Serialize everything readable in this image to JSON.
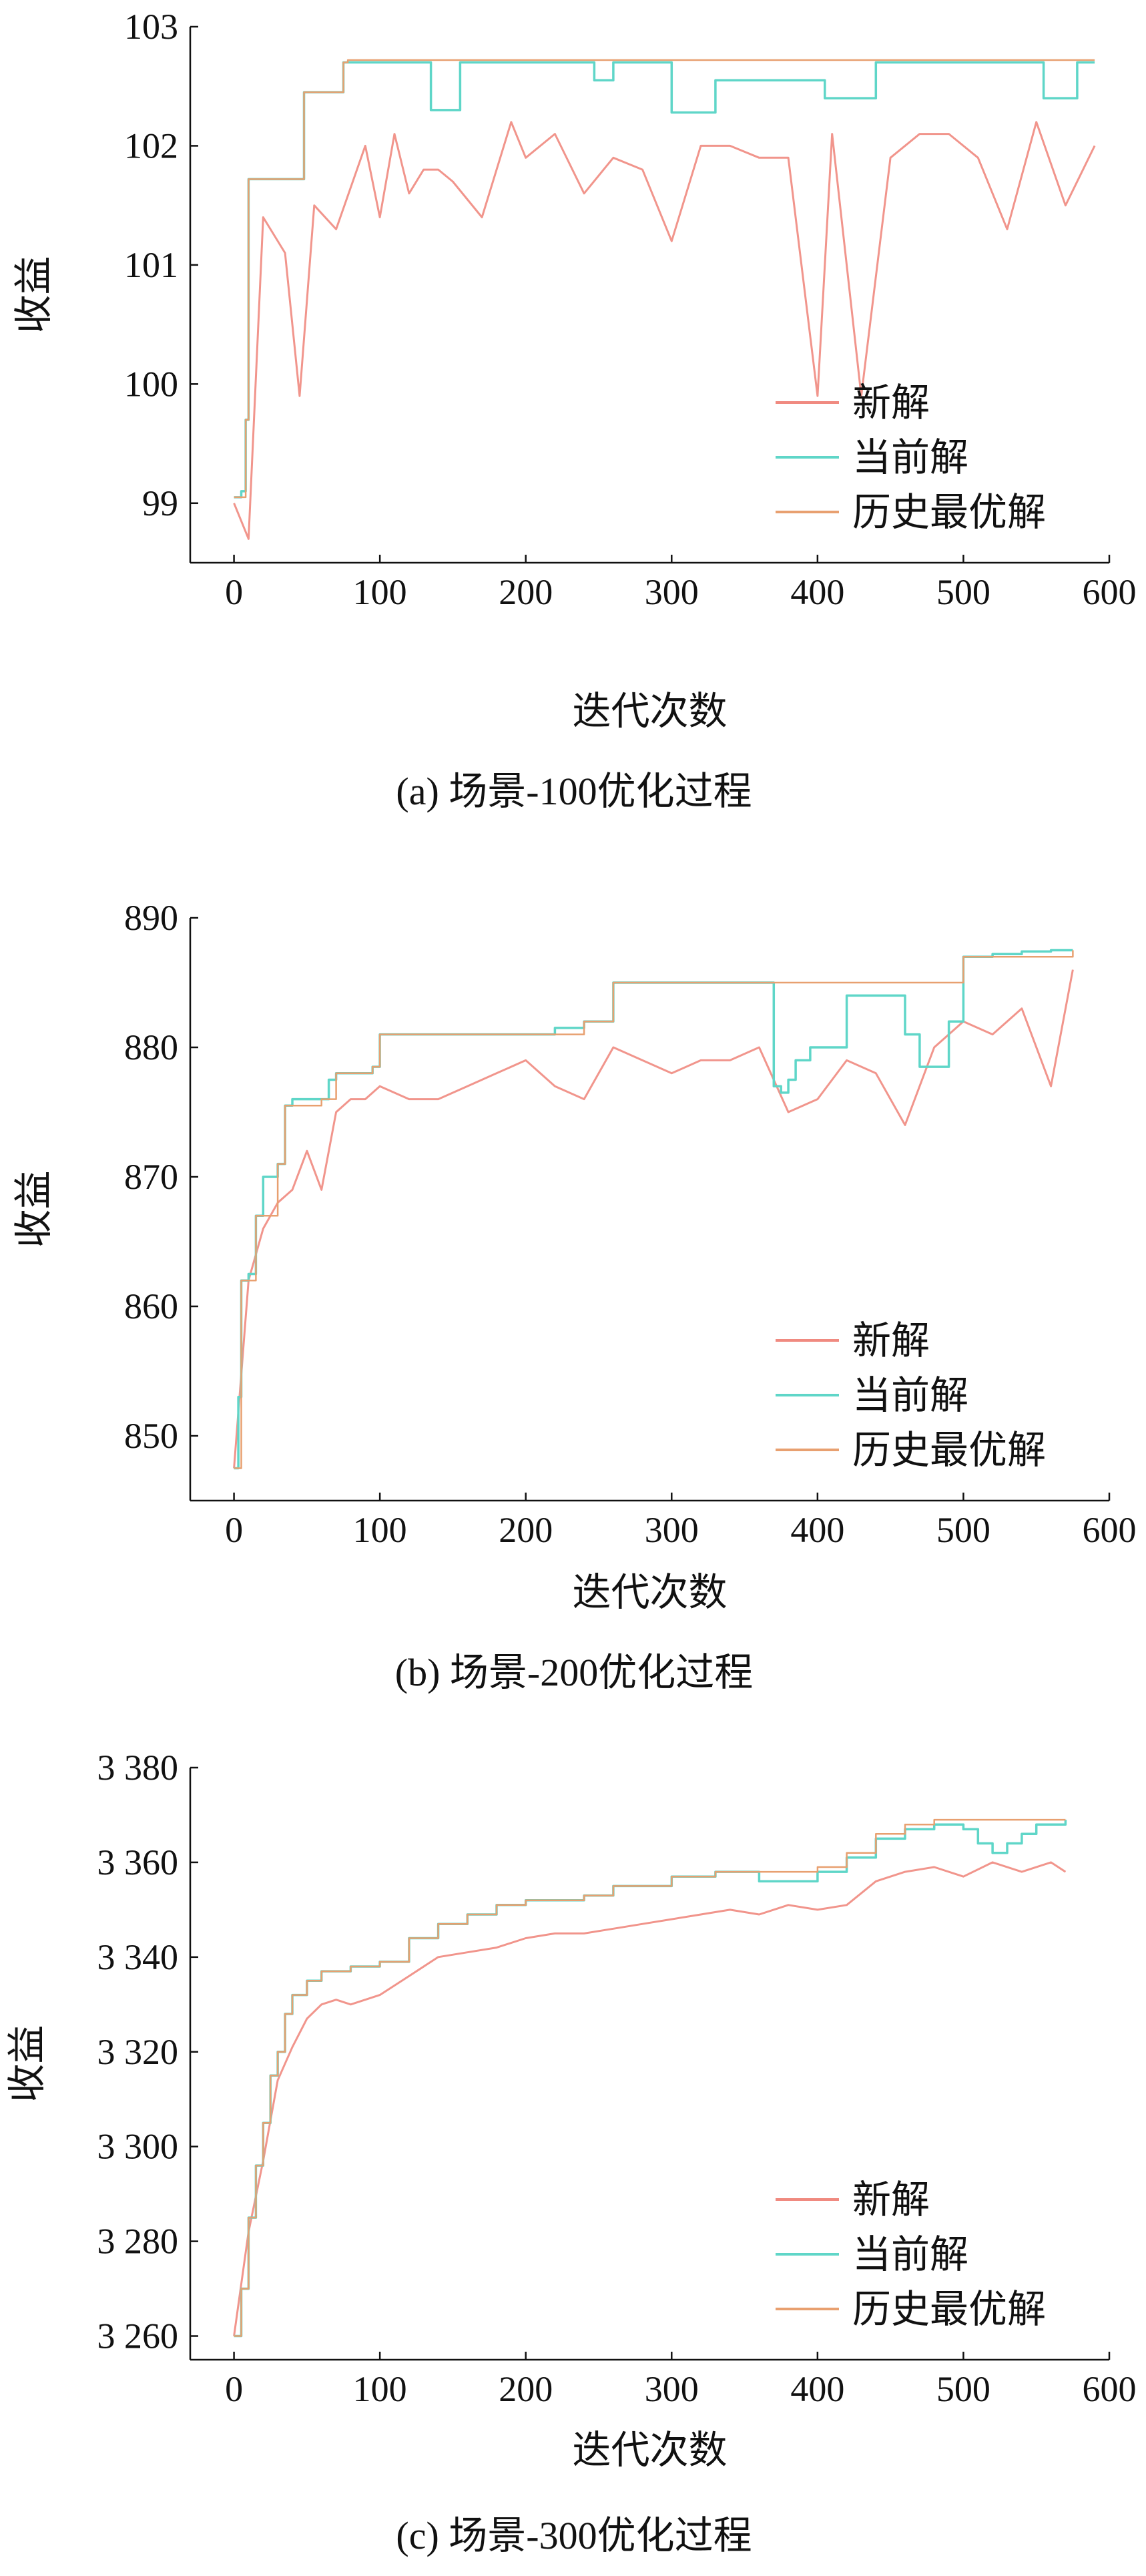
{
  "chart_data": [
    {
      "type": "line",
      "caption": "(a) 场景-100优化过程",
      "xlabel": "迭代次数",
      "ylabel": "收益",
      "xlim": [
        -30,
        600
      ],
      "ylim": [
        98.5,
        103.0
      ],
      "xticks": [
        0,
        100,
        200,
        300,
        400,
        500,
        600
      ],
      "yticks": [
        99,
        100,
        101,
        102,
        103
      ],
      "ytick_labels": [
        "99",
        "100",
        "101",
        "102",
        "103"
      ],
      "legend": [
        "新解",
        "当前解",
        "历史最优解"
      ],
      "legend_position": "bottom-right",
      "grid": false,
      "series": [
        {
          "name": "当前解",
          "x": [
            0,
            5,
            8,
            10,
            12,
            45,
            48,
            75,
            78,
            130,
            135,
            150,
            155,
            242,
            247,
            255,
            260,
            298,
            300,
            325,
            330,
            340,
            345,
            400,
            405,
            435,
            440,
            550,
            555,
            575,
            578,
            590
          ],
          "values": [
            99.05,
            99.1,
            99.7,
            101.72,
            101.72,
            101.72,
            102.45,
            102.7,
            102.7,
            102.7,
            102.3,
            102.3,
            102.7,
            102.7,
            102.55,
            102.55,
            102.7,
            102.7,
            102.28,
            102.28,
            102.55,
            102.55,
            102.55,
            102.55,
            102.4,
            102.4,
            102.7,
            102.7,
            102.4,
            102.4,
            102.7,
            102.7
          ]
        },
        {
          "name": "历史最优解",
          "x": [
            0,
            8,
            10,
            45,
            48,
            75,
            78,
            590
          ],
          "values": [
            99.05,
            99.7,
            101.72,
            101.72,
            102.45,
            102.7,
            102.72,
            102.72
          ]
        },
        {
          "name": "新解",
          "x": [
            0,
            10,
            20,
            35,
            45,
            55,
            70,
            90,
            100,
            110,
            120,
            130,
            140,
            150,
            170,
            190,
            200,
            220,
            240,
            260,
            280,
            300,
            320,
            340,
            360,
            380,
            400,
            410,
            430,
            450,
            470,
            490,
            510,
            530,
            550,
            570,
            590
          ],
          "values": [
            99.0,
            98.7,
            101.4,
            101.1,
            99.9,
            101.5,
            101.3,
            102.0,
            101.4,
            102.1,
            101.6,
            101.8,
            101.8,
            101.7,
            101.4,
            102.2,
            101.9,
            102.1,
            101.6,
            101.9,
            101.8,
            101.2,
            102.0,
            102.0,
            101.9,
            101.9,
            99.9,
            102.1,
            99.9,
            101.9,
            102.1,
            102.1,
            101.9,
            101.3,
            102.2,
            101.5,
            102.0
          ]
        }
      ]
    },
    {
      "type": "line",
      "caption": "(b) 场景-200优化过程",
      "xlabel": "迭代次数",
      "ylabel": "收益",
      "xlim": [
        -30,
        600
      ],
      "ylim": [
        845,
        890
      ],
      "xticks": [
        0,
        100,
        200,
        300,
        400,
        500,
        600
      ],
      "yticks": [
        850,
        860,
        870,
        880,
        890
      ],
      "ytick_labels": [
        "850",
        "860",
        "870",
        "880",
        "890"
      ],
      "legend": [
        "新解",
        "当前解",
        "历史最优解"
      ],
      "legend_position": "bottom-right",
      "grid": false,
      "series": [
        {
          "name": "当前解",
          "x": [
            0,
            3,
            5,
            10,
            15,
            20,
            30,
            35,
            40,
            60,
            65,
            70,
            90,
            95,
            100,
            150,
            200,
            220,
            240,
            260,
            300,
            360,
            370,
            375,
            380,
            385,
            395,
            400,
            420,
            450,
            460,
            470,
            480,
            490,
            500,
            520,
            540,
            560,
            575
          ],
          "values": [
            847.5,
            853,
            862,
            862.5,
            867,
            870,
            871,
            875.5,
            876,
            876,
            877.5,
            878,
            878,
            878.5,
            881,
            881,
            881,
            881.5,
            882,
            885,
            885,
            885,
            877,
            876.5,
            877.5,
            879,
            880,
            880,
            884,
            884,
            881,
            878.5,
            878.5,
            882,
            887,
            887.2,
            887.4,
            887.5,
            887.5
          ]
        },
        {
          "name": "历史最优解",
          "x": [
            0,
            5,
            15,
            30,
            35,
            60,
            70,
            95,
            100,
            200,
            240,
            260,
            480,
            500,
            575
          ],
          "values": [
            847.5,
            862,
            867,
            871,
            875.5,
            876,
            878,
            878.5,
            881,
            881,
            882,
            885,
            885,
            887,
            887.5
          ]
        },
        {
          "name": "新解",
          "x": [
            0,
            10,
            20,
            30,
            40,
            50,
            60,
            70,
            80,
            90,
            100,
            120,
            140,
            160,
            180,
            200,
            220,
            240,
            260,
            280,
            300,
            320,
            340,
            360,
            380,
            400,
            420,
            440,
            460,
            480,
            500,
            520,
            540,
            560,
            575
          ],
          "values": [
            847.5,
            862,
            866,
            868,
            869,
            872,
            869,
            875,
            876,
            876,
            877,
            876,
            876,
            877,
            878,
            879,
            877,
            876,
            880,
            879,
            878,
            879,
            879,
            880,
            875,
            876,
            879,
            878,
            874,
            880,
            882,
            881,
            883,
            877,
            886
          ]
        }
      ]
    },
    {
      "type": "line",
      "caption": "(c) 场景-300优化过程",
      "xlabel": "迭代次数",
      "ylabel": "收益",
      "xlim": [
        -30,
        600
      ],
      "ylim": [
        3255,
        3380
      ],
      "xticks": [
        0,
        100,
        200,
        300,
        400,
        500,
        600
      ],
      "yticks": [
        3260,
        3280,
        3300,
        3320,
        3340,
        3360,
        3380
      ],
      "ytick_labels": [
        "3 260",
        "3 280",
        "3 300",
        "3 320",
        "3 340",
        "3 360",
        "3 380"
      ],
      "legend": [
        "新解",
        "当前解",
        "历史最优解"
      ],
      "legend_position": "bottom-right",
      "grid": false,
      "series": [
        {
          "name": "当前解",
          "x": [
            0,
            5,
            10,
            15,
            20,
            25,
            30,
            35,
            40,
            50,
            60,
            80,
            100,
            120,
            140,
            160,
            180,
            200,
            240,
            260,
            300,
            330,
            360,
            400,
            420,
            440,
            460,
            480,
            500,
            510,
            520,
            530,
            540,
            550,
            570
          ],
          "values": [
            3260,
            3270,
            3285,
            3296,
            3305,
            3315,
            3320,
            3328,
            3332,
            3335,
            3337,
            3338,
            3339,
            3344,
            3347,
            3349,
            3351,
            3352,
            3353,
            3355,
            3357,
            3358,
            3356,
            3358,
            3361,
            3365,
            3367,
            3368,
            3367,
            3364,
            3362,
            3364,
            3366,
            3368,
            3369
          ]
        },
        {
          "name": "历史最优解",
          "x": [
            0,
            5,
            10,
            15,
            20,
            25,
            30,
            35,
            40,
            50,
            60,
            80,
            100,
            120,
            140,
            160,
            180,
            200,
            240,
            260,
            300,
            330,
            360,
            400,
            420,
            440,
            460,
            480,
            500,
            540,
            570
          ],
          "values": [
            3260,
            3270,
            3285,
            3296,
            3305,
            3315,
            3320,
            3328,
            3332,
            3335,
            3337,
            3338,
            3339,
            3344,
            3347,
            3349,
            3351,
            3352,
            3353,
            3355,
            3357,
            3358,
            3358,
            3359,
            3362,
            3366,
            3368,
            3369,
            3369,
            3369,
            3369
          ]
        },
        {
          "name": "新解",
          "x": [
            0,
            10,
            20,
            30,
            40,
            50,
            60,
            70,
            80,
            100,
            120,
            140,
            160,
            180,
            200,
            220,
            240,
            260,
            280,
            300,
            320,
            340,
            360,
            380,
            400,
            420,
            440,
            460,
            480,
            500,
            520,
            540,
            560,
            570
          ],
          "values": [
            3260,
            3282,
            3297,
            3314,
            3321,
            3327,
            3330,
            3331,
            3330,
            3332,
            3336,
            3340,
            3341,
            3342,
            3344,
            3345,
            3345,
            3346,
            3347,
            3348,
            3349,
            3350,
            3349,
            3351,
            3350,
            3351,
            3356,
            3358,
            3359,
            3357,
            3360,
            3358,
            3360,
            3358
          ]
        }
      ]
    }
  ],
  "colors": {
    "new": "#f08a80",
    "current": "#5fd6c8",
    "best": "#e8a070",
    "axis": "#111111"
  }
}
